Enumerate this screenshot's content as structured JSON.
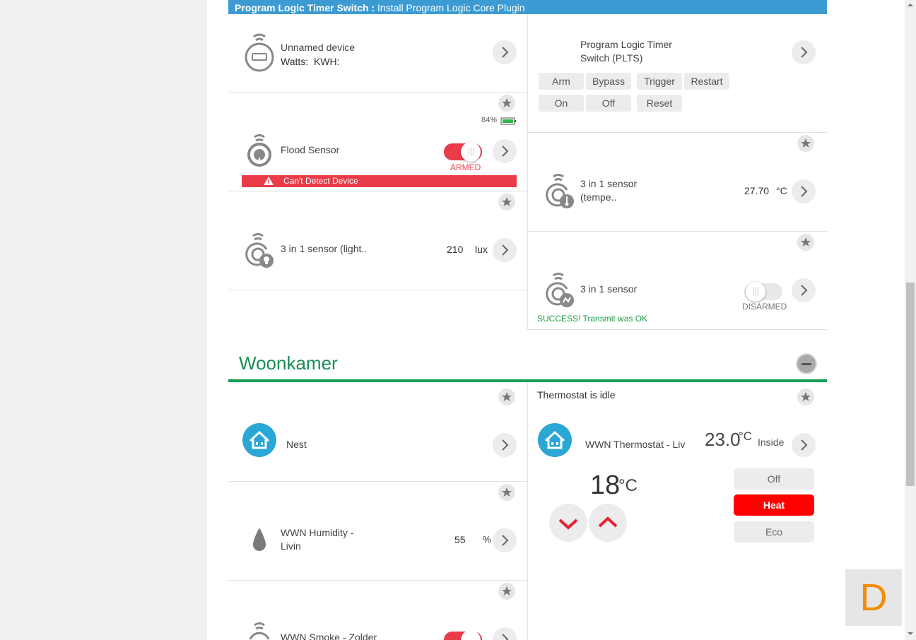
{
  "banner": {
    "bold": "Program Logic Timer Switch :",
    "text": " Install Program Logic Core Plugin"
  },
  "devices": {
    "unnamed": {
      "name": "Unnamed device",
      "watts_label": "Watts:",
      "kwh_label": "KWH:"
    },
    "plts": {
      "name_line1": "Program Logic Timer",
      "name_line2": "Switch (PLTS)",
      "buttons": [
        "Arm",
        "Bypass",
        "Trigger",
        "Restart",
        "On",
        "Off",
        "Reset"
      ]
    },
    "flood": {
      "name": "Flood Sensor",
      "battery": "84%",
      "state": "ARMED",
      "alert": "Can't Detect Device"
    },
    "temp": {
      "name_line1": "3 in 1 sensor",
      "name_line2": "(tempe..",
      "value": "27.70",
      "unit": "°C"
    },
    "light": {
      "name": "3 in 1 sensor (light..",
      "value": "210",
      "unit": "lux"
    },
    "motion": {
      "name": "3 in 1 sensor",
      "state": "DISARMED",
      "status": "SUCCESS! Transmit was OK"
    }
  },
  "section": {
    "title": "Woonkamer"
  },
  "nest": {
    "name": "Nest"
  },
  "thermostat": {
    "status": "Thermostat is idle",
    "name": "WWN Thermostat - Liv",
    "inside_value": "23.0",
    "inside_unit": "°C",
    "inside_label": "Inside",
    "setpoint": "18",
    "setpoint_unit": "°C",
    "modes": [
      "Off",
      "Heat",
      "Eco"
    ],
    "active_mode": "Heat"
  },
  "humidity": {
    "name_line1": "WWN Humidity -",
    "name_line2": "Livin",
    "value": "55",
    "unit": "%"
  },
  "smoke": {
    "name": "WWN Smoke - Zolder"
  },
  "corner": {
    "letter": "D"
  },
  "colors": {
    "banner": "#3c9bd2",
    "section": "#13a053",
    "alert": "#ea3b48",
    "heat": "#ff0000",
    "icon_blue": "#2aa7d6"
  }
}
